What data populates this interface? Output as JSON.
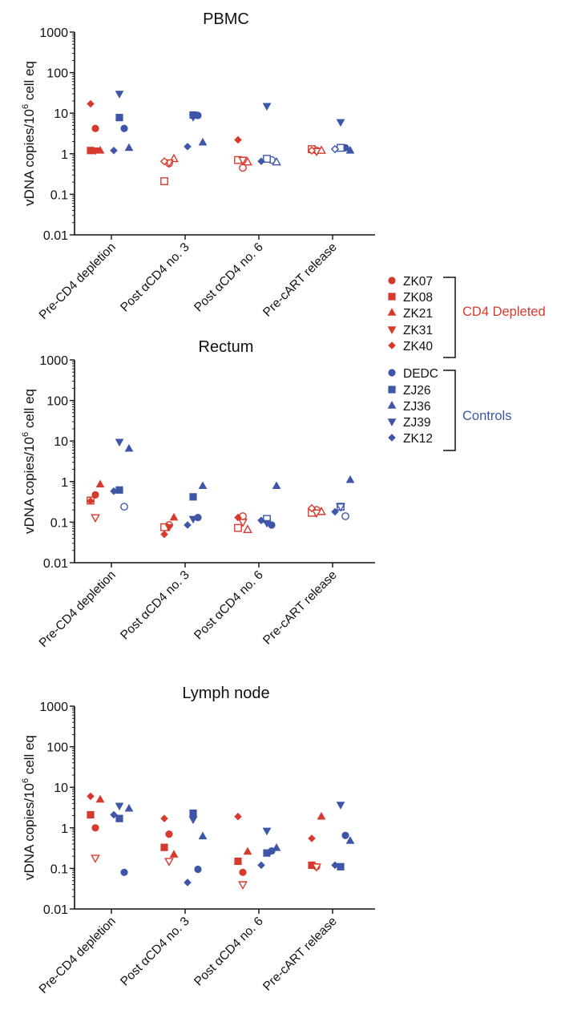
{
  "colors": {
    "cd4_depleted": "#d63a2f",
    "controls": "#3f56a8",
    "axis": "#111111"
  },
  "legend": {
    "groups": [
      {
        "label": "CD4 Depleted",
        "color_key": "cd4_depleted",
        "subjects": [
          {
            "name": "ZK07",
            "shape": "circle"
          },
          {
            "name": "ZK08",
            "shape": "square"
          },
          {
            "name": "ZK21",
            "shape": "triangle-up"
          },
          {
            "name": "ZK31",
            "shape": "triangle-down"
          },
          {
            "name": "ZK40",
            "shape": "diamond"
          }
        ]
      },
      {
        "label": "Controls",
        "color_key": "controls",
        "subjects": [
          {
            "name": "DEDC",
            "shape": "circle"
          },
          {
            "name": "ZJ26",
            "shape": "square"
          },
          {
            "name": "ZJ36",
            "shape": "triangle-up"
          },
          {
            "name": "ZJ39",
            "shape": "triangle-down"
          },
          {
            "name": "ZK12",
            "shape": "diamond"
          }
        ]
      }
    ]
  },
  "chart_data": [
    {
      "type": "scatter",
      "title": "PBMC",
      "ylabel": {
        "main": "vDNA copies/10",
        "sup": "6",
        "tail": " cell eq"
      },
      "yscale": "log",
      "ylim": [
        0.01,
        1000
      ],
      "yticks": [
        "0.01",
        "0.1",
        "1",
        "10",
        "100",
        "1000"
      ],
      "categories": [
        "Pre-CD4 depletion",
        "Post αCD4 no. 3",
        "Post αCD4 no. 6",
        "Pre-cART release"
      ],
      "series": [
        {
          "name": "ZK07",
          "values": [
            4.2,
            0.58,
            0.45,
            1.2
          ],
          "filled": [
            true,
            false,
            false,
            false
          ]
        },
        {
          "name": "ZK08",
          "values": [
            1.2,
            0.21,
            0.7,
            1.3
          ],
          "filled": [
            true,
            false,
            false,
            false
          ]
        },
        {
          "name": "ZK21",
          "values": [
            1.2,
            0.75,
            0.62,
            1.2
          ],
          "filled": [
            true,
            false,
            false,
            false
          ]
        },
        {
          "name": "ZK31",
          "values": [
            1.2,
            0.6,
            0.7,
            1.15
          ],
          "filled": [
            true,
            false,
            false,
            false
          ]
        },
        {
          "name": "ZK40",
          "values": [
            17,
            0.65,
            2.2,
            1.2
          ],
          "filled": [
            true,
            false,
            true,
            false
          ]
        },
        {
          "name": "DEDC",
          "values": [
            4.2,
            8.8,
            0.7,
            1.4
          ],
          "filled": [
            true,
            true,
            false,
            true
          ]
        },
        {
          "name": "ZJ26",
          "values": [
            7.8,
            9,
            0.75,
            1.4
          ],
          "filled": [
            true,
            true,
            false,
            false
          ]
        },
        {
          "name": "ZJ36",
          "values": [
            1.4,
            1.9,
            0.62,
            1.2
          ],
          "filled": [
            true,
            true,
            false,
            true
          ]
        },
        {
          "name": "ZJ39",
          "values": [
            30,
            8,
            15,
            6
          ],
          "filled": [
            true,
            true,
            true,
            true
          ]
        },
        {
          "name": "ZK12",
          "values": [
            1.2,
            1.5,
            0.65,
            1.3
          ],
          "filled": [
            true,
            true,
            true,
            false
          ]
        }
      ]
    },
    {
      "type": "scatter",
      "title": "Rectum",
      "ylabel": {
        "main": "vDNA copies/10",
        "sup": "6",
        "tail": " cell eq"
      },
      "yscale": "log",
      "ylim": [
        0.01,
        1000
      ],
      "yticks": [
        "0.01",
        "0.1",
        "1",
        "10",
        "100",
        "1000"
      ],
      "categories": [
        "Pre-CD4 depletion",
        "Post αCD4 no. 3",
        "Post αCD4 no. 6",
        "Pre-cART release"
      ],
      "series": [
        {
          "name": "ZK07",
          "values": [
            0.47,
            0.085,
            0.14,
            0.2
          ],
          "filled": [
            true,
            false,
            false,
            false
          ]
        },
        {
          "name": "ZK08",
          "values": [
            0.34,
            0.075,
            0.072,
            0.17
          ],
          "filled": [
            false,
            false,
            false,
            false
          ]
        },
        {
          "name": "ZK21",
          "values": [
            0.85,
            0.13,
            0.065,
            0.18
          ],
          "filled": [
            true,
            true,
            false,
            false
          ]
        },
        {
          "name": "ZK31",
          "values": [
            0.13,
            0.075,
            0.1,
            0.17
          ],
          "filled": [
            false,
            true,
            false,
            false
          ]
        },
        {
          "name": "ZK40",
          "values": [
            0.33,
            0.05,
            0.13,
            0.22
          ],
          "filled": [
            true,
            true,
            true,
            false
          ]
        },
        {
          "name": "DEDC",
          "values": [
            0.24,
            0.13,
            0.085,
            0.14
          ],
          "filled": [
            false,
            true,
            true,
            false
          ]
        },
        {
          "name": "ZJ26",
          "values": [
            0.62,
            0.42,
            0.12,
            0.24
          ],
          "filled": [
            true,
            true,
            false,
            false
          ]
        },
        {
          "name": "ZJ36",
          "values": [
            6.5,
            0.78,
            0.78,
            1.1
          ],
          "filled": [
            true,
            true,
            true,
            true
          ]
        },
        {
          "name": "ZJ39",
          "values": [
            9.5,
            0.12,
            0.095,
            0.24
          ],
          "filled": [
            true,
            true,
            true,
            false
          ]
        },
        {
          "name": "ZK12",
          "values": [
            0.58,
            0.085,
            0.11,
            0.18
          ],
          "filled": [
            true,
            true,
            true,
            true
          ]
        }
      ]
    },
    {
      "type": "scatter",
      "title": "Lymph node",
      "ylabel": {
        "main": "vDNA copies/10",
        "sup": "6",
        "tail": " cell eq"
      },
      "yscale": "log",
      "ylim": [
        0.01,
        1000
      ],
      "yticks": [
        "0.01",
        "0.1",
        "1",
        "10",
        "100",
        "1000"
      ],
      "categories": [
        "Pre-CD4 depletion",
        "Post αCD4 no. 3",
        "Post αCD4 no. 6",
        "Pre-cART release"
      ],
      "series": [
        {
          "name": "ZK07",
          "values": [
            1.0,
            0.7,
            0.08,
            0.11
          ],
          "filled": [
            true,
            true,
            true,
            true
          ]
        },
        {
          "name": "ZK08",
          "values": [
            2.1,
            0.33,
            0.15,
            0.12
          ],
          "filled": [
            true,
            true,
            true,
            true
          ]
        },
        {
          "name": "ZK21",
          "values": [
            5,
            0.22,
            0.26,
            1.9
          ],
          "filled": [
            true,
            true,
            true,
            true
          ]
        },
        {
          "name": "ZK31",
          "values": [
            0.18,
            0.15,
            0.04,
            0.11
          ],
          "filled": [
            false,
            false,
            false,
            false
          ]
        },
        {
          "name": "ZK40",
          "values": [
            6,
            1.7,
            1.9,
            0.55
          ],
          "filled": [
            true,
            true,
            true,
            true
          ]
        },
        {
          "name": "DEDC",
          "values": [
            0.08,
            0.095,
            0.27,
            0.65
          ],
          "filled": [
            true,
            true,
            true,
            true
          ]
        },
        {
          "name": "ZJ26",
          "values": [
            1.7,
            2.3,
            0.24,
            0.11
          ],
          "filled": [
            true,
            true,
            true,
            true
          ]
        },
        {
          "name": "ZJ36",
          "values": [
            3,
            0.62,
            0.32,
            0.48
          ],
          "filled": [
            true,
            true,
            true,
            true
          ]
        },
        {
          "name": "ZJ39",
          "values": [
            3.5,
            1.6,
            0.85,
            3.7
          ],
          "filled": [
            true,
            true,
            true,
            true
          ]
        },
        {
          "name": "ZK12",
          "values": [
            2.1,
            0.045,
            0.12,
            0.12
          ],
          "filled": [
            true,
            true,
            true,
            true
          ]
        }
      ]
    }
  ]
}
